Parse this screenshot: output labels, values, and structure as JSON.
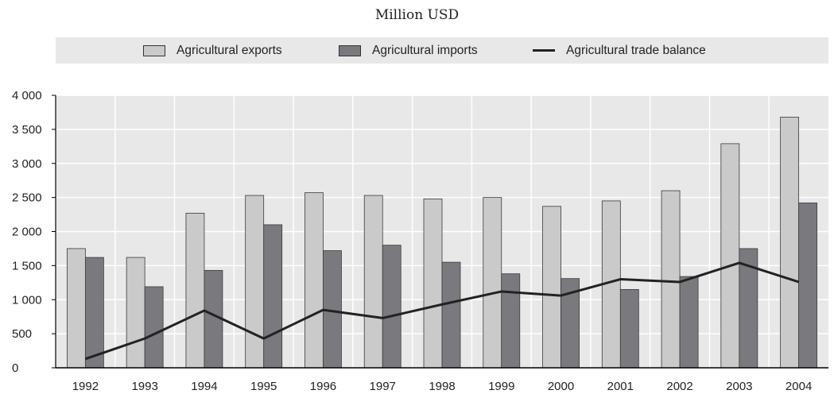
{
  "chart_data": {
    "type": "bar",
    "title": "",
    "subtitle": "Million USD",
    "xlabel": "",
    "ylabel": "",
    "categories": [
      "1992",
      "1993",
      "1994",
      "1995",
      "1996",
      "1997",
      "1998",
      "1999",
      "2000",
      "2001",
      "2002",
      "2003",
      "2004"
    ],
    "series": [
      {
        "name": "Agricultural exports",
        "kind": "bar",
        "color": "#cacaca",
        "values": [
          1750,
          1620,
          2270,
          2530,
          2570,
          2530,
          2480,
          2500,
          2370,
          2450,
          2600,
          3290,
          3680
        ]
      },
      {
        "name": "Agricultural imports",
        "kind": "bar",
        "color": "#7a7a7e",
        "values": [
          1620,
          1190,
          1430,
          2100,
          1720,
          1800,
          1550,
          1380,
          1310,
          1150,
          1340,
          1750,
          2420
        ]
      },
      {
        "name": "Agricultural trade balance",
        "kind": "line",
        "color": "#222222",
        "values": [
          130,
          430,
          840,
          430,
          850,
          730,
          930,
          1120,
          1060,
          1300,
          1260,
          1540,
          1260
        ]
      }
    ],
    "ylim": [
      0,
      4000
    ],
    "yticks": [
      0,
      500,
      1000,
      1500,
      2000,
      2500,
      3000,
      3500,
      4000
    ],
    "ytick_labels": [
      "0",
      "500",
      "1 000",
      "1 500",
      "2 000",
      "2 500",
      "3 000",
      "3 500",
      "4 000"
    ],
    "grid": true,
    "legend_position": "top"
  }
}
